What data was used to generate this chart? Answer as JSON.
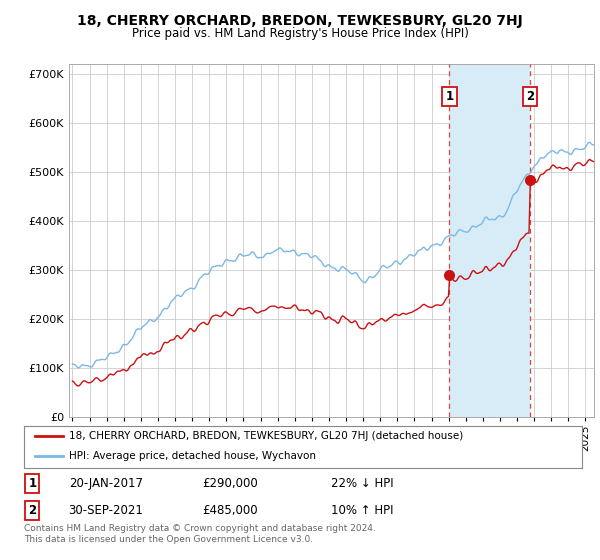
{
  "title": "18, CHERRY ORCHARD, BREDON, TEWKESBURY, GL20 7HJ",
  "subtitle": "Price paid vs. HM Land Registry's House Price Index (HPI)",
  "ytick_values": [
    0,
    100000,
    200000,
    300000,
    400000,
    500000,
    600000,
    700000
  ],
  "ylim": [
    0,
    720000
  ],
  "xlim_left": 1994.8,
  "xlim_right": 2025.5,
  "sale1_date": 2017.05,
  "sale1_price": 290000,
  "sale1_text": "20-JAN-2017",
  "sale1_pct": "22% ↓ HPI",
  "sale2_date": 2021.75,
  "sale2_price": 485000,
  "sale2_text": "30-SEP-2021",
  "sale2_pct": "10% ↑ HPI",
  "hpi_color": "#7ab8e8",
  "price_color": "#cc1111",
  "shade_color": "#d8ecf8",
  "legend_line1": "18, CHERRY ORCHARD, BREDON, TEWKESBURY, GL20 7HJ (detached house)",
  "legend_line2": "HPI: Average price, detached house, Wychavon",
  "footer1": "Contains HM Land Registry data © Crown copyright and database right 2024.",
  "footer2": "This data is licensed under the Open Government Licence v3.0.",
  "background_color": "#ffffff",
  "grid_color": "#cccccc"
}
